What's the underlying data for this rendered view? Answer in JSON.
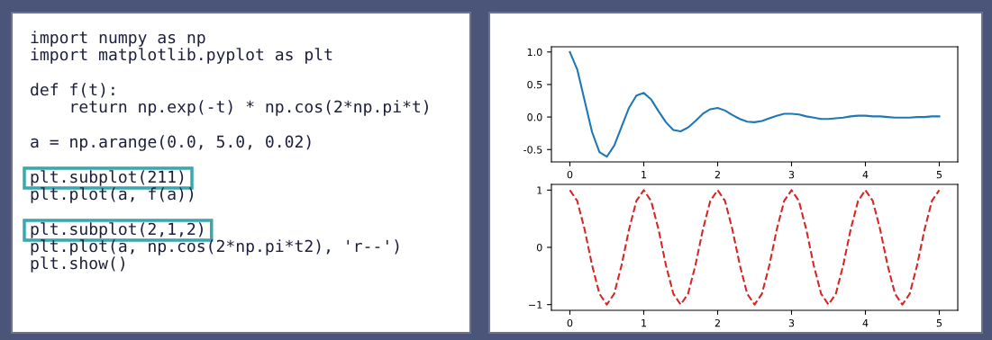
{
  "chart_data": [
    {
      "type": "other",
      "annotations": [
        "import numpy as np",
        "import matplotlib.pyplot as plt",
        "def f(t):",
        "    return np.exp(-t) * np.cos(2*np.pi*t)",
        "a = np.arange(0.0, 5.0, 0.02)",
        "plt.subplot(211)",
        "plt.plot(a, f(a))",
        "plt.subplot(2,1,2)",
        "plt.plot(a, np.cos(2*np.pi*t2), 'r--')",
        "plt.show()"
      ]
    },
    {
      "type": "line",
      "x": [
        0,
        0.1,
        0.2,
        0.3,
        0.4,
        0.5,
        0.6,
        0.7,
        0.8,
        0.9,
        1.0,
        1.1,
        1.2,
        1.3,
        1.4,
        1.5,
        1.6,
        1.7,
        1.8,
        1.9,
        2.0,
        2.1,
        2.2,
        2.3,
        2.4,
        2.5,
        2.6,
        2.7,
        2.8,
        2.9,
        3.0,
        3.1,
        3.2,
        3.3,
        3.4,
        3.5,
        3.6,
        3.7,
        3.8,
        3.9,
        4.0,
        4.1,
        4.2,
        4.3,
        4.4,
        4.5,
        4.6,
        4.7,
        4.8,
        4.9,
        5.0
      ],
      "series": [
        {
          "color": "#1f77b4",
          "values": [
            1.0,
            0.73,
            0.25,
            -0.23,
            -0.54,
            -0.61,
            -0.44,
            -0.15,
            0.14,
            0.33,
            0.37,
            0.27,
            0.09,
            -0.08,
            -0.2,
            -0.22,
            -0.16,
            -0.06,
            0.05,
            0.12,
            0.14,
            0.1,
            0.03,
            -0.03,
            -0.07,
            -0.08,
            -0.06,
            -0.02,
            0.02,
            0.05,
            0.05,
            0.04,
            0.01,
            -0.01,
            -0.03,
            -0.03,
            -0.02,
            -0.01,
            0.01,
            0.02,
            0.02,
            0.01,
            0.01,
            0.0,
            -0.01,
            -0.01,
            -0.01,
            0.0,
            0.0,
            0.01,
            0.01
          ]
        }
      ],
      "line_style": "solid",
      "xlim": [
        -0.25,
        5.25
      ],
      "ylim": [
        -0.69,
        1.08
      ],
      "xticks": [
        0,
        1,
        2,
        3,
        4,
        5
      ],
      "yticks": [
        {
          "value": -0.5,
          "label": "-0.5"
        },
        {
          "value": 0,
          "label": "0.0"
        },
        {
          "value": 0.5,
          "label": "0.5"
        },
        {
          "value": 1,
          "label": "1.0"
        }
      ],
      "grid": false
    },
    {
      "type": "line",
      "x": [
        0,
        0.1,
        0.2,
        0.3,
        0.4,
        0.5,
        0.6,
        0.7,
        0.8,
        0.9,
        1.0,
        1.1,
        1.2,
        1.3,
        1.4,
        1.5,
        1.6,
        1.7,
        1.8,
        1.9,
        2.0,
        2.1,
        2.2,
        2.3,
        2.4,
        2.5,
        2.6,
        2.7,
        2.8,
        2.9,
        3.0,
        3.1,
        3.2,
        3.3,
        3.4,
        3.5,
        3.6,
        3.7,
        3.8,
        3.9,
        4.0,
        4.1,
        4.2,
        4.3,
        4.4,
        4.5,
        4.6,
        4.7,
        4.8,
        4.9,
        5.0
      ],
      "series": [
        {
          "color": "#d62728",
          "values": [
            1,
            0.81,
            0.31,
            -0.31,
            -0.81,
            -1,
            -0.81,
            -0.31,
            0.31,
            0.81,
            1,
            0.81,
            0.31,
            -0.31,
            -0.81,
            -1,
            -0.81,
            -0.31,
            0.31,
            0.81,
            1,
            0.81,
            0.31,
            -0.31,
            -0.81,
            -1,
            -0.81,
            -0.31,
            0.31,
            0.81,
            1,
            0.81,
            0.31,
            -0.31,
            -0.81,
            -1,
            -0.81,
            -0.31,
            0.31,
            0.81,
            1,
            0.81,
            0.31,
            -0.31,
            -0.81,
            -1,
            -0.81,
            -0.31,
            0.31,
            0.81,
            1
          ]
        }
      ],
      "line_style": "dashed",
      "xlim": [
        -0.25,
        5.25
      ],
      "ylim": [
        -1.1,
        1.1
      ],
      "xticks": [
        0,
        1,
        2,
        3,
        4,
        5
      ],
      "yticks": [
        {
          "value": -1,
          "label": "−1"
        },
        0,
        1
      ],
      "grid": false
    }
  ]
}
